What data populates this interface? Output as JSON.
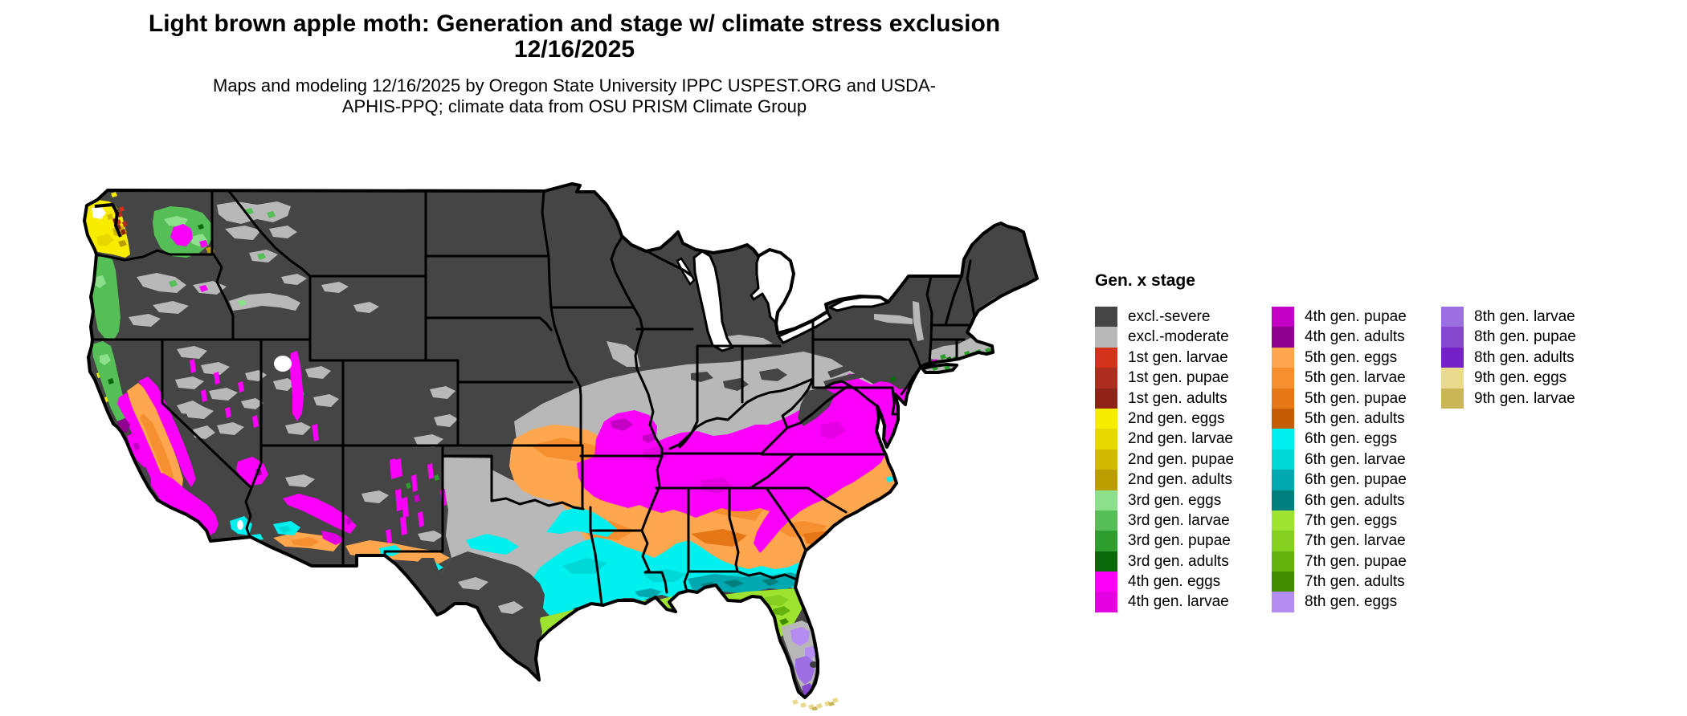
{
  "header": {
    "title": "Light brown apple moth: Generation and stage w/ climate stress exclusion 12/16/2025",
    "subtitle": "Maps and modeling 12/16/2025 by Oregon State University IPPC USPEST.ORG and USDA-APHIS-PPQ; climate data from OSU PRISM Climate Group"
  },
  "palette": {
    "excl_severe": "#454545",
    "excl_moderate": "#b8b8b8",
    "g1_larvae": "#d2331a",
    "g1_pupae": "#ad2d1e",
    "g1_adults": "#8f2318",
    "g2_eggs": "#f8ec00",
    "g2_larvae": "#e8d800",
    "g2_pupae": "#d2b800",
    "g2_adults": "#bd9c00",
    "g3_eggs": "#8ce08c",
    "g3_larvae": "#56be56",
    "g3_pupae": "#2e9e2e",
    "g3_adults": "#0a6a0a",
    "g4_eggs": "#fa00fa",
    "g4_larvae": "#e300e3",
    "g4_pupae": "#c300c3",
    "g4_adults": "#8f008f",
    "g5_eggs": "#ffa64f",
    "g5_larvae": "#f58f30",
    "g5_pupae": "#e57717",
    "g5_adults": "#c45c04",
    "g6_eggs": "#00f0f0",
    "g6_larvae": "#00d8d8",
    "g6_pupae": "#00a8b0",
    "g6_adults": "#007f7f",
    "g7_eggs": "#9de32f",
    "g7_larvae": "#85cf20",
    "g7_pupae": "#63b20e",
    "g7_adults": "#418c00",
    "g8_eggs": "#b48cf2",
    "g8_larvae": "#9c70e2",
    "g8_pupae": "#8748d0",
    "g8_adults": "#7321c6",
    "g9_eggs": "#eada8e",
    "g9_larvae": "#c9b456",
    "water": "#ffffff",
    "border": "#000000",
    "lake_dark": "#3e3e3e"
  },
  "legend": {
    "title": "Gen. x stage",
    "columns": [
      [
        {
          "label": "excl.-severe",
          "key": "excl_severe"
        },
        {
          "label": "excl.-moderate",
          "key": "excl_moderate"
        },
        {
          "label": "1st gen. larvae",
          "key": "g1_larvae"
        },
        {
          "label": "1st gen. pupae",
          "key": "g1_pupae"
        },
        {
          "label": "1st gen. adults",
          "key": "g1_adults"
        },
        {
          "label": "2nd gen. eggs",
          "key": "g2_eggs"
        },
        {
          "label": "2nd gen. larvae",
          "key": "g2_larvae"
        },
        {
          "label": "2nd gen. pupae",
          "key": "g2_pupae"
        },
        {
          "label": "2nd gen. adults",
          "key": "g2_adults"
        },
        {
          "label": "3rd gen. eggs",
          "key": "g3_eggs"
        },
        {
          "label": "3rd gen. larvae",
          "key": "g3_larvae"
        },
        {
          "label": "3rd gen. pupae",
          "key": "g3_pupae"
        },
        {
          "label": "3rd gen. adults",
          "key": "g3_adults"
        },
        {
          "label": "4th gen. eggs",
          "key": "g4_eggs"
        },
        {
          "label": "4th gen. larvae",
          "key": "g4_larvae"
        }
      ],
      [
        {
          "label": "4th gen. pupae",
          "key": "g4_pupae"
        },
        {
          "label": "4th gen. adults",
          "key": "g4_adults"
        },
        {
          "label": "5th gen. eggs",
          "key": "g5_eggs"
        },
        {
          "label": "5th gen. larvae",
          "key": "g5_larvae"
        },
        {
          "label": "5th gen. pupae",
          "key": "g5_pupae"
        },
        {
          "label": "5th gen. adults",
          "key": "g5_adults"
        },
        {
          "label": "6th gen. eggs",
          "key": "g6_eggs"
        },
        {
          "label": "6th gen. larvae",
          "key": "g6_larvae"
        },
        {
          "label": "6th gen. pupae",
          "key": "g6_pupae"
        },
        {
          "label": "6th gen. adults",
          "key": "g6_adults"
        },
        {
          "label": "7th gen. eggs",
          "key": "g7_eggs"
        },
        {
          "label": "7th gen. larvae",
          "key": "g7_larvae"
        },
        {
          "label": "7th gen. pupae",
          "key": "g7_pupae"
        },
        {
          "label": "7th gen. adults",
          "key": "g7_adults"
        },
        {
          "label": "8th gen. eggs",
          "key": "g8_eggs"
        }
      ],
      [
        {
          "label": "8th gen. larvae",
          "key": "g8_larvae"
        },
        {
          "label": "8th gen. pupae",
          "key": "g8_pupae"
        },
        {
          "label": "8th gen. adults",
          "key": "g8_adults"
        },
        {
          "label": "9th gen. eggs",
          "key": "g9_eggs"
        },
        {
          "label": "9th gen. larvae",
          "key": "g9_larvae"
        }
      ]
    ]
  },
  "map": {
    "region_label": "Continental United States",
    "pattern_notes": [
      "Northern states, Rockies, Great Basin and south Texas: excl.-severe (dark gray)",
      "Central Plains through Ohio Valley, Pennsylvania and central Texas: excl.-moderate (light gray)",
      "Missouri/Kentucky/Virginia to mid-Atlantic coast and Appalachian flanks: 4th gen. eggs (magenta)",
      "Oklahoma/Arkansas/Tennessee/Carolinas: 5th gen. eggs-pupae (oranges)",
      "East Texas and Gulf states inland: 6th gen. eggs-adults (cyan to teal)",
      "Gulf coast fringe and north Florida: 7th gen. eggs-pupae (yellow-greens)",
      "Central/south Florida: 8th gen. eggs-pupae (purples) with excl.-moderate patches",
      "Florida Keys: 9th gen. eggs/larvae (khaki)",
      "Puget lowlands 1st-2nd gen (reds/yellows); Columbia Plateau and coastal OR/CA 3rd gen (greens)",
      "California Central Valley 5th gen (orange) ringed by 4th gen (magenta)"
    ]
  }
}
